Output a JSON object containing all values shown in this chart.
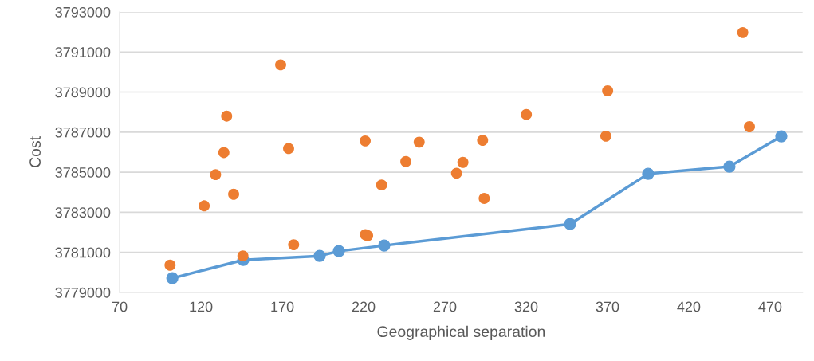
{
  "chart_data": {
    "type": "scatter",
    "xlabel": "Geographical separation",
    "ylabel": "Cost",
    "xlim": [
      70,
      490
    ],
    "xticks": [
      70,
      120,
      170,
      220,
      270,
      320,
      370,
      420,
      470
    ],
    "ylim": [
      3779000,
      3793000
    ],
    "yticks": [
      3779000,
      3781000,
      3783000,
      3785000,
      3787000,
      3789000,
      3791000,
      3793000
    ],
    "grid": "y",
    "marker": "circle",
    "series": [
      {
        "type": "line",
        "color": "#5b9bd5",
        "line_style": "solid",
        "x": [
          102.4,
          146,
          193,
          204.8,
          232.7,
          347,
          395,
          445,
          476.9
        ],
        "values": [
          3779710,
          3780620,
          3780820,
          3781060,
          3781340,
          3782410,
          3784920,
          3785280,
          3786790
        ]
      },
      {
        "color": "#ed7d31",
        "x": [
          101.0,
          122.0,
          129.0,
          134.1,
          135.8,
          140.1,
          145.8,
          169.0,
          173.9,
          177.0,
          221.1,
          222.5,
          221.0,
          231.1,
          246.0,
          254.2,
          277.2,
          281.1,
          293.2,
          294.2,
          320.1,
          369.0,
          370.1,
          453.2,
          457.3
        ],
        "values": [
          3780360,
          3783320,
          3784880,
          3785980,
          3787800,
          3783900,
          3780820,
          3790360,
          3786180,
          3781380,
          3781880,
          3781830,
          3786560,
          3784360,
          3785530,
          3786500,
          3784950,
          3785490,
          3786590,
          3783690,
          3787880,
          3786800,
          3789060,
          3791970,
          3787270
        ]
      }
    ]
  }
}
